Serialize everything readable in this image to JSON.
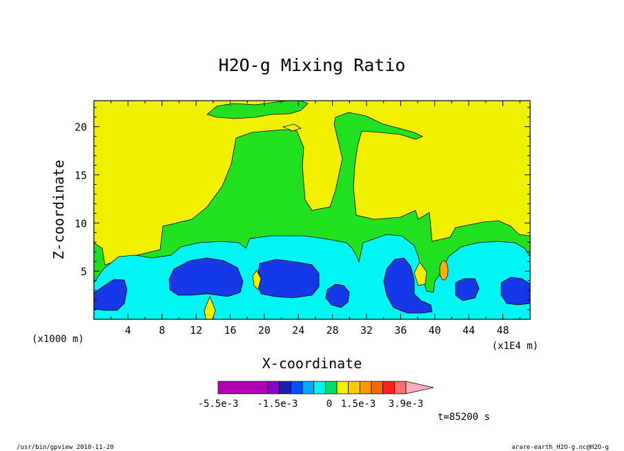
{
  "chart_data": {
    "type": "heatmap",
    "title": "H2O-g Mixing Ratio",
    "xlabel": "X-coordinate",
    "ylabel": "Z-coordinate",
    "x_unit_left": "(x1000 m)",
    "x_unit_right": "(x1E4 m)",
    "x_ticks": [
      "4",
      "8",
      "12",
      "16",
      "20",
      "24",
      "28",
      "32",
      "36",
      "40",
      "44",
      "48"
    ],
    "x_tick_values": [
      4,
      8,
      12,
      16,
      20,
      24,
      28,
      32,
      36,
      40,
      44,
      48
    ],
    "y_ticks": [
      "5",
      "10",
      "15",
      "20"
    ],
    "y_tick_values": [
      5,
      10,
      15,
      20
    ],
    "xlim": [
      0,
      51.2
    ],
    "ylim": [
      0,
      22.7
    ],
    "colorbar": {
      "labels": [
        "-5.5e-3",
        "-1.5e-3",
        "0",
        "1.5e-3",
        "3.9e-3"
      ],
      "label_values": [
        -0.0055,
        -0.0015,
        0,
        0.0015,
        0.0039
      ],
      "colors": [
        "#b000b0",
        "#8a00c8",
        "#1a20a8",
        "#0050ff",
        "#00aaff",
        "#00f5f5",
        "#00dd66",
        "#f0f000",
        "#ffcc00",
        "#ff9900",
        "#ff6600",
        "#ff2020",
        "#ff7070",
        "#ffb0c0"
      ]
    },
    "regions": [
      {
        "level": "yellow",
        "color": "#f0f000"
      },
      {
        "level": "green",
        "color": "#20e020"
      },
      {
        "level": "cyan",
        "color": "#00f5f5"
      },
      {
        "level": "blue",
        "color": "#1438e6"
      },
      {
        "level": "orange",
        "color": "#ffb000"
      }
    ]
  },
  "time_label": "t=85200 s",
  "footer_left": "/usr/bin/gpview  2010-11-20",
  "footer_right": "arare-earth_H2O-g.nc@H2O-g"
}
